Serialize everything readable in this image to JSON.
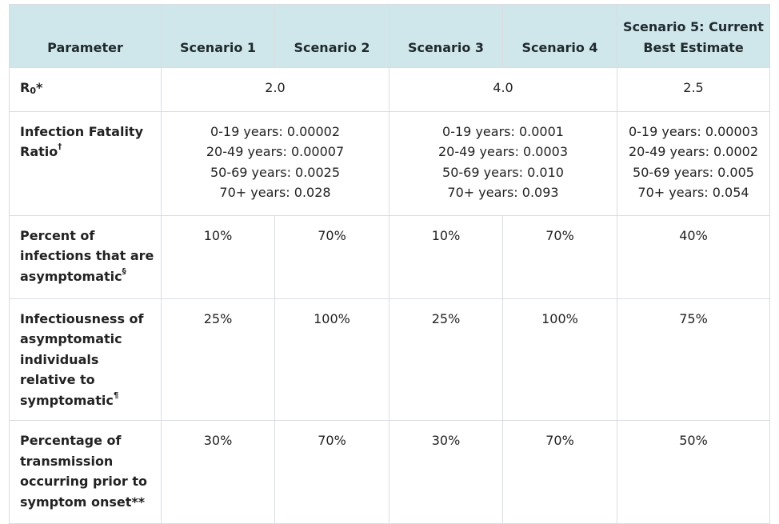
{
  "header": {
    "parameter": "Parameter",
    "s1": "Scenario 1",
    "s2": "Scenario 2",
    "s3": "Scenario 3",
    "s4": "Scenario 4",
    "s5": "Scenario 5: Current Best Estimate"
  },
  "rows": {
    "r0": {
      "label_main": "R",
      "label_sub": "0",
      "label_mark": "*",
      "s12": "2.0",
      "s34": "4.0",
      "s5": "2.5"
    },
    "ifr": {
      "label": "Infection Fatality Ratio",
      "mark": "†",
      "s12": [
        "0-19 years: 0.00002",
        "20-49 years: 0.00007",
        "50-69 years: 0.0025",
        "70+ years: 0.028"
      ],
      "s34": [
        "0-19 years: 0.0001",
        "20-49 years: 0.0003",
        "50-69 years: 0.010",
        "70+ years: 0.093"
      ],
      "s5": [
        "0-19 years: 0.00003",
        "20-49 years: 0.0002",
        "50-69 years: 0.005",
        "70+ years: 0.054"
      ]
    },
    "asym": {
      "label": "Percent of infections that are asymptomatic",
      "mark": "§",
      "s1": "10%",
      "s2": "70%",
      "s3": "10%",
      "s4": "70%",
      "s5": "40%"
    },
    "infect": {
      "label": "Infectiousness of asymptomatic individuals relative to symptomatic",
      "mark": "¶",
      "s1": "25%",
      "s2": "100%",
      "s3": "25%",
      "s4": "100%",
      "s5": "75%"
    },
    "trans": {
      "label": "Percentage of transmission occurring prior to symptom onset",
      "mark": "**",
      "s1": "30%",
      "s2": "70%",
      "s3": "30%",
      "s4": "70%",
      "s5": "50%"
    }
  }
}
